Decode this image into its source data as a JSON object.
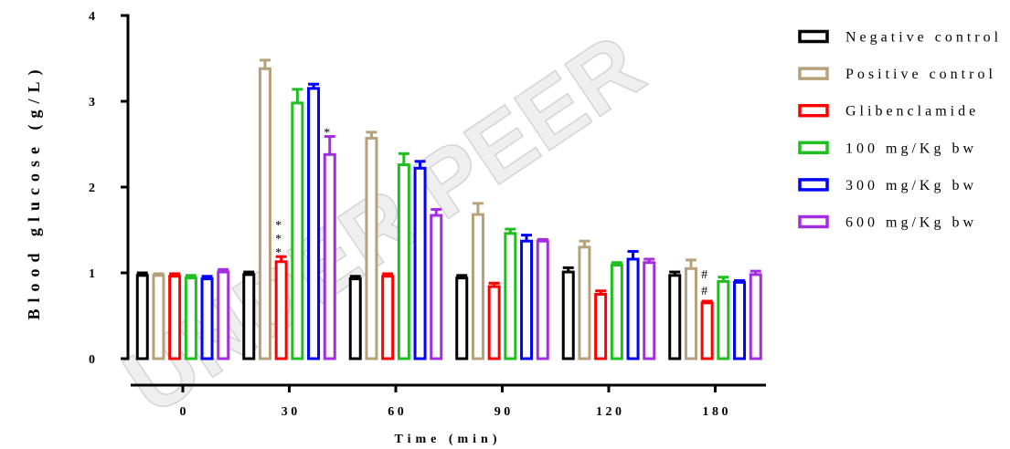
{
  "watermark": "UNDER PEER",
  "chart_data": {
    "type": "bar",
    "xlabel": "Time (min)",
    "ylabel": "Blood glucose (g/L)",
    "categories": [
      "0",
      "30",
      "60",
      "90",
      "120",
      "180"
    ],
    "ylim": [
      0,
      4
    ],
    "yticks": [
      0,
      1,
      2,
      3,
      4
    ],
    "grid": false,
    "legend_position": "right",
    "series": [
      {
        "name": "Negative control",
        "color": "#000000",
        "values": [
          0.97,
          0.98,
          0.93,
          0.94,
          1.01,
          0.97
        ],
        "errors": [
          0.03,
          0.03,
          0.03,
          0.03,
          0.05,
          0.04
        ]
      },
      {
        "name": "Positive control",
        "color": "#b5a27a",
        "values": [
          0.97,
          3.38,
          2.57,
          1.68,
          1.3,
          1.05
        ],
        "errors": [
          0.02,
          0.1,
          0.07,
          0.13,
          0.07,
          0.1
        ]
      },
      {
        "name": "Glibenclamide",
        "color": "#ff0000",
        "values": [
          0.96,
          1.13,
          0.96,
          0.84,
          0.75,
          0.65
        ],
        "errors": [
          0.03,
          0.06,
          0.03,
          0.04,
          0.04,
          0.02
        ]
      },
      {
        "name": "100 mg/Kg bw",
        "color": "#1fbf1f",
        "values": [
          0.94,
          2.98,
          2.26,
          1.46,
          1.09,
          0.9
        ],
        "errors": [
          0.03,
          0.16,
          0.13,
          0.05,
          0.03,
          0.05
        ]
      },
      {
        "name": "300 mg/Kg bw",
        "color": "#0000ff",
        "values": [
          0.93,
          3.15,
          2.22,
          1.37,
          1.16,
          0.89
        ],
        "errors": [
          0.03,
          0.05,
          0.08,
          0.07,
          0.09,
          0.02
        ]
      },
      {
        "name": "600 mg/Kg bw",
        "color": "#a22ee0",
        "values": [
          1.01,
          2.38,
          1.67,
          1.37,
          1.12,
          0.98
        ],
        "errors": [
          0.03,
          0.21,
          0.07,
          0.02,
          0.04,
          0.04
        ]
      }
    ],
    "annotations": [
      {
        "category": "30",
        "series": "Glibenclamide",
        "marks": [
          "*",
          "*",
          "*"
        ]
      },
      {
        "category": "30",
        "series": "600 mg/Kg bw",
        "marks": [
          "*"
        ]
      },
      {
        "category": "180",
        "series": "Glibenclamide",
        "marks": [
          "#",
          "#"
        ]
      }
    ]
  }
}
